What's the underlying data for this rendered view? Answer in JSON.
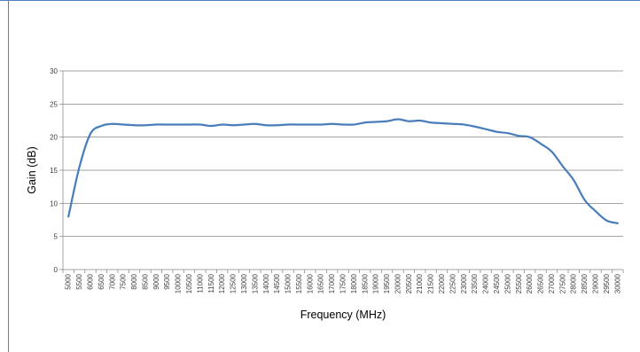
{
  "chart_data": {
    "type": "line",
    "title": "",
    "xlabel": "Frequency (MHz)",
    "ylabel": "Gain (dB)",
    "ylim": [
      0,
      30
    ],
    "yticks": [
      0,
      5,
      10,
      15,
      20,
      25,
      30
    ],
    "grid": "horizontal",
    "legend": "none",
    "categories": [
      "5000",
      "5500",
      "6000",
      "6500",
      "7000",
      "7500",
      "8000",
      "8500",
      "9000",
      "9500",
      "10000",
      "10500",
      "11000",
      "11500",
      "12000",
      "12500",
      "13000",
      "13500",
      "14000",
      "14500",
      "15000",
      "15500",
      "16000",
      "16500",
      "17000",
      "17500",
      "18000",
      "18500",
      "19000",
      "19500",
      "20000",
      "20500",
      "21000",
      "21500",
      "22000",
      "22500",
      "23000",
      "23500",
      "24000",
      "24500",
      "25000",
      "25500",
      "26000",
      "26500",
      "27000",
      "27500",
      "28000",
      "28500",
      "29000",
      "29500",
      "30000"
    ],
    "series": [
      {
        "values": [
          8.0,
          15.5,
          20.5,
          21.7,
          22.0,
          21.9,
          21.8,
          21.8,
          21.9,
          21.9,
          21.9,
          21.9,
          21.9,
          21.7,
          21.9,
          21.8,
          21.9,
          22.0,
          21.8,
          21.8,
          21.9,
          21.9,
          21.9,
          21.9,
          22.0,
          21.9,
          21.9,
          22.2,
          22.3,
          22.4,
          22.7,
          22.4,
          22.5,
          22.2,
          22.1,
          22.0,
          21.9,
          21.6,
          21.2,
          20.8,
          20.6,
          20.2,
          20.0,
          19.0,
          17.8,
          15.6,
          13.5,
          10.5,
          8.8,
          7.4,
          7.0
        ],
        "color": "#4a7ebb"
      }
    ],
    "colors": {
      "line": "#4a7ebb",
      "grid": "#868686",
      "axis": "#868686",
      "frame": "#4f81bd"
    }
  }
}
